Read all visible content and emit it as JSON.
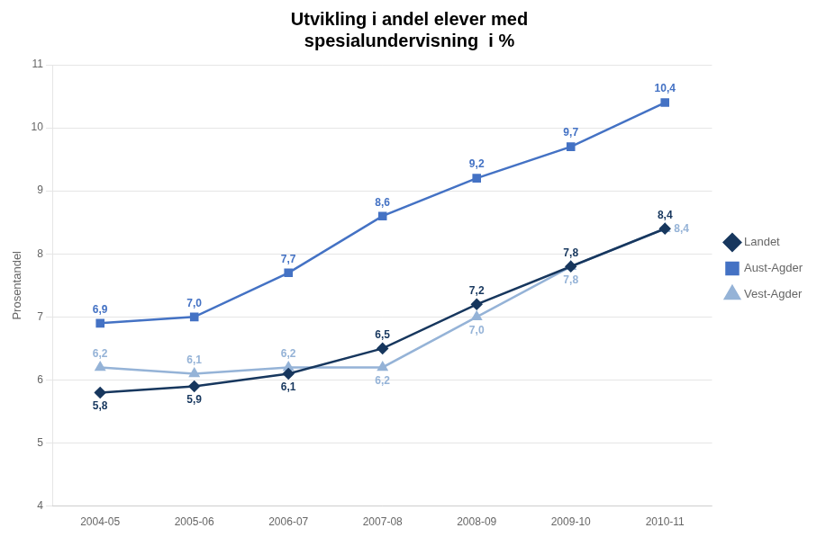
{
  "chart_data": {
    "type": "line",
    "title": "Utvikling i andel elever med\nspesialundervisning  i %",
    "ylabel": "Prosentandel",
    "categories": [
      "2004-05",
      "2005-06",
      "2006-07",
      "2007-08",
      "2008-09",
      "2009-10",
      "2010-11"
    ],
    "series": [
      {
        "name": "Landet",
        "color": "#17375E",
        "marker": "diamond",
        "values": [
          5.8,
          5.9,
          6.1,
          6.5,
          7.2,
          7.8,
          8.4
        ],
        "value_labels": [
          "5,8",
          "5,9",
          "6,1",
          "6,5",
          "7,2",
          "7,8",
          "8,4"
        ]
      },
      {
        "name": "Aust-Agder",
        "color": "#4472C4",
        "marker": "square",
        "values": [
          6.9,
          7.0,
          7.7,
          8.6,
          9.2,
          9.7,
          10.4
        ],
        "value_labels": [
          "6,9",
          "7,0",
          "7,7",
          "8,6",
          "9,2",
          "9,7",
          "10,4"
        ]
      },
      {
        "name": "Vest-Agder",
        "color": "#95B3D7",
        "marker": "triangle",
        "values": [
          6.2,
          6.1,
          6.2,
          6.2,
          7.0,
          7.8,
          8.4
        ],
        "value_labels": [
          "6,2",
          "6,1",
          "6,2",
          "6,2",
          "7,0",
          "7,8",
          "8,4"
        ]
      }
    ],
    "ylim": [
      4,
      11
    ],
    "yticks": [
      4,
      5,
      6,
      7,
      8,
      9,
      10,
      11
    ],
    "grid": true,
    "legend": "right",
    "data_labels": true
  }
}
